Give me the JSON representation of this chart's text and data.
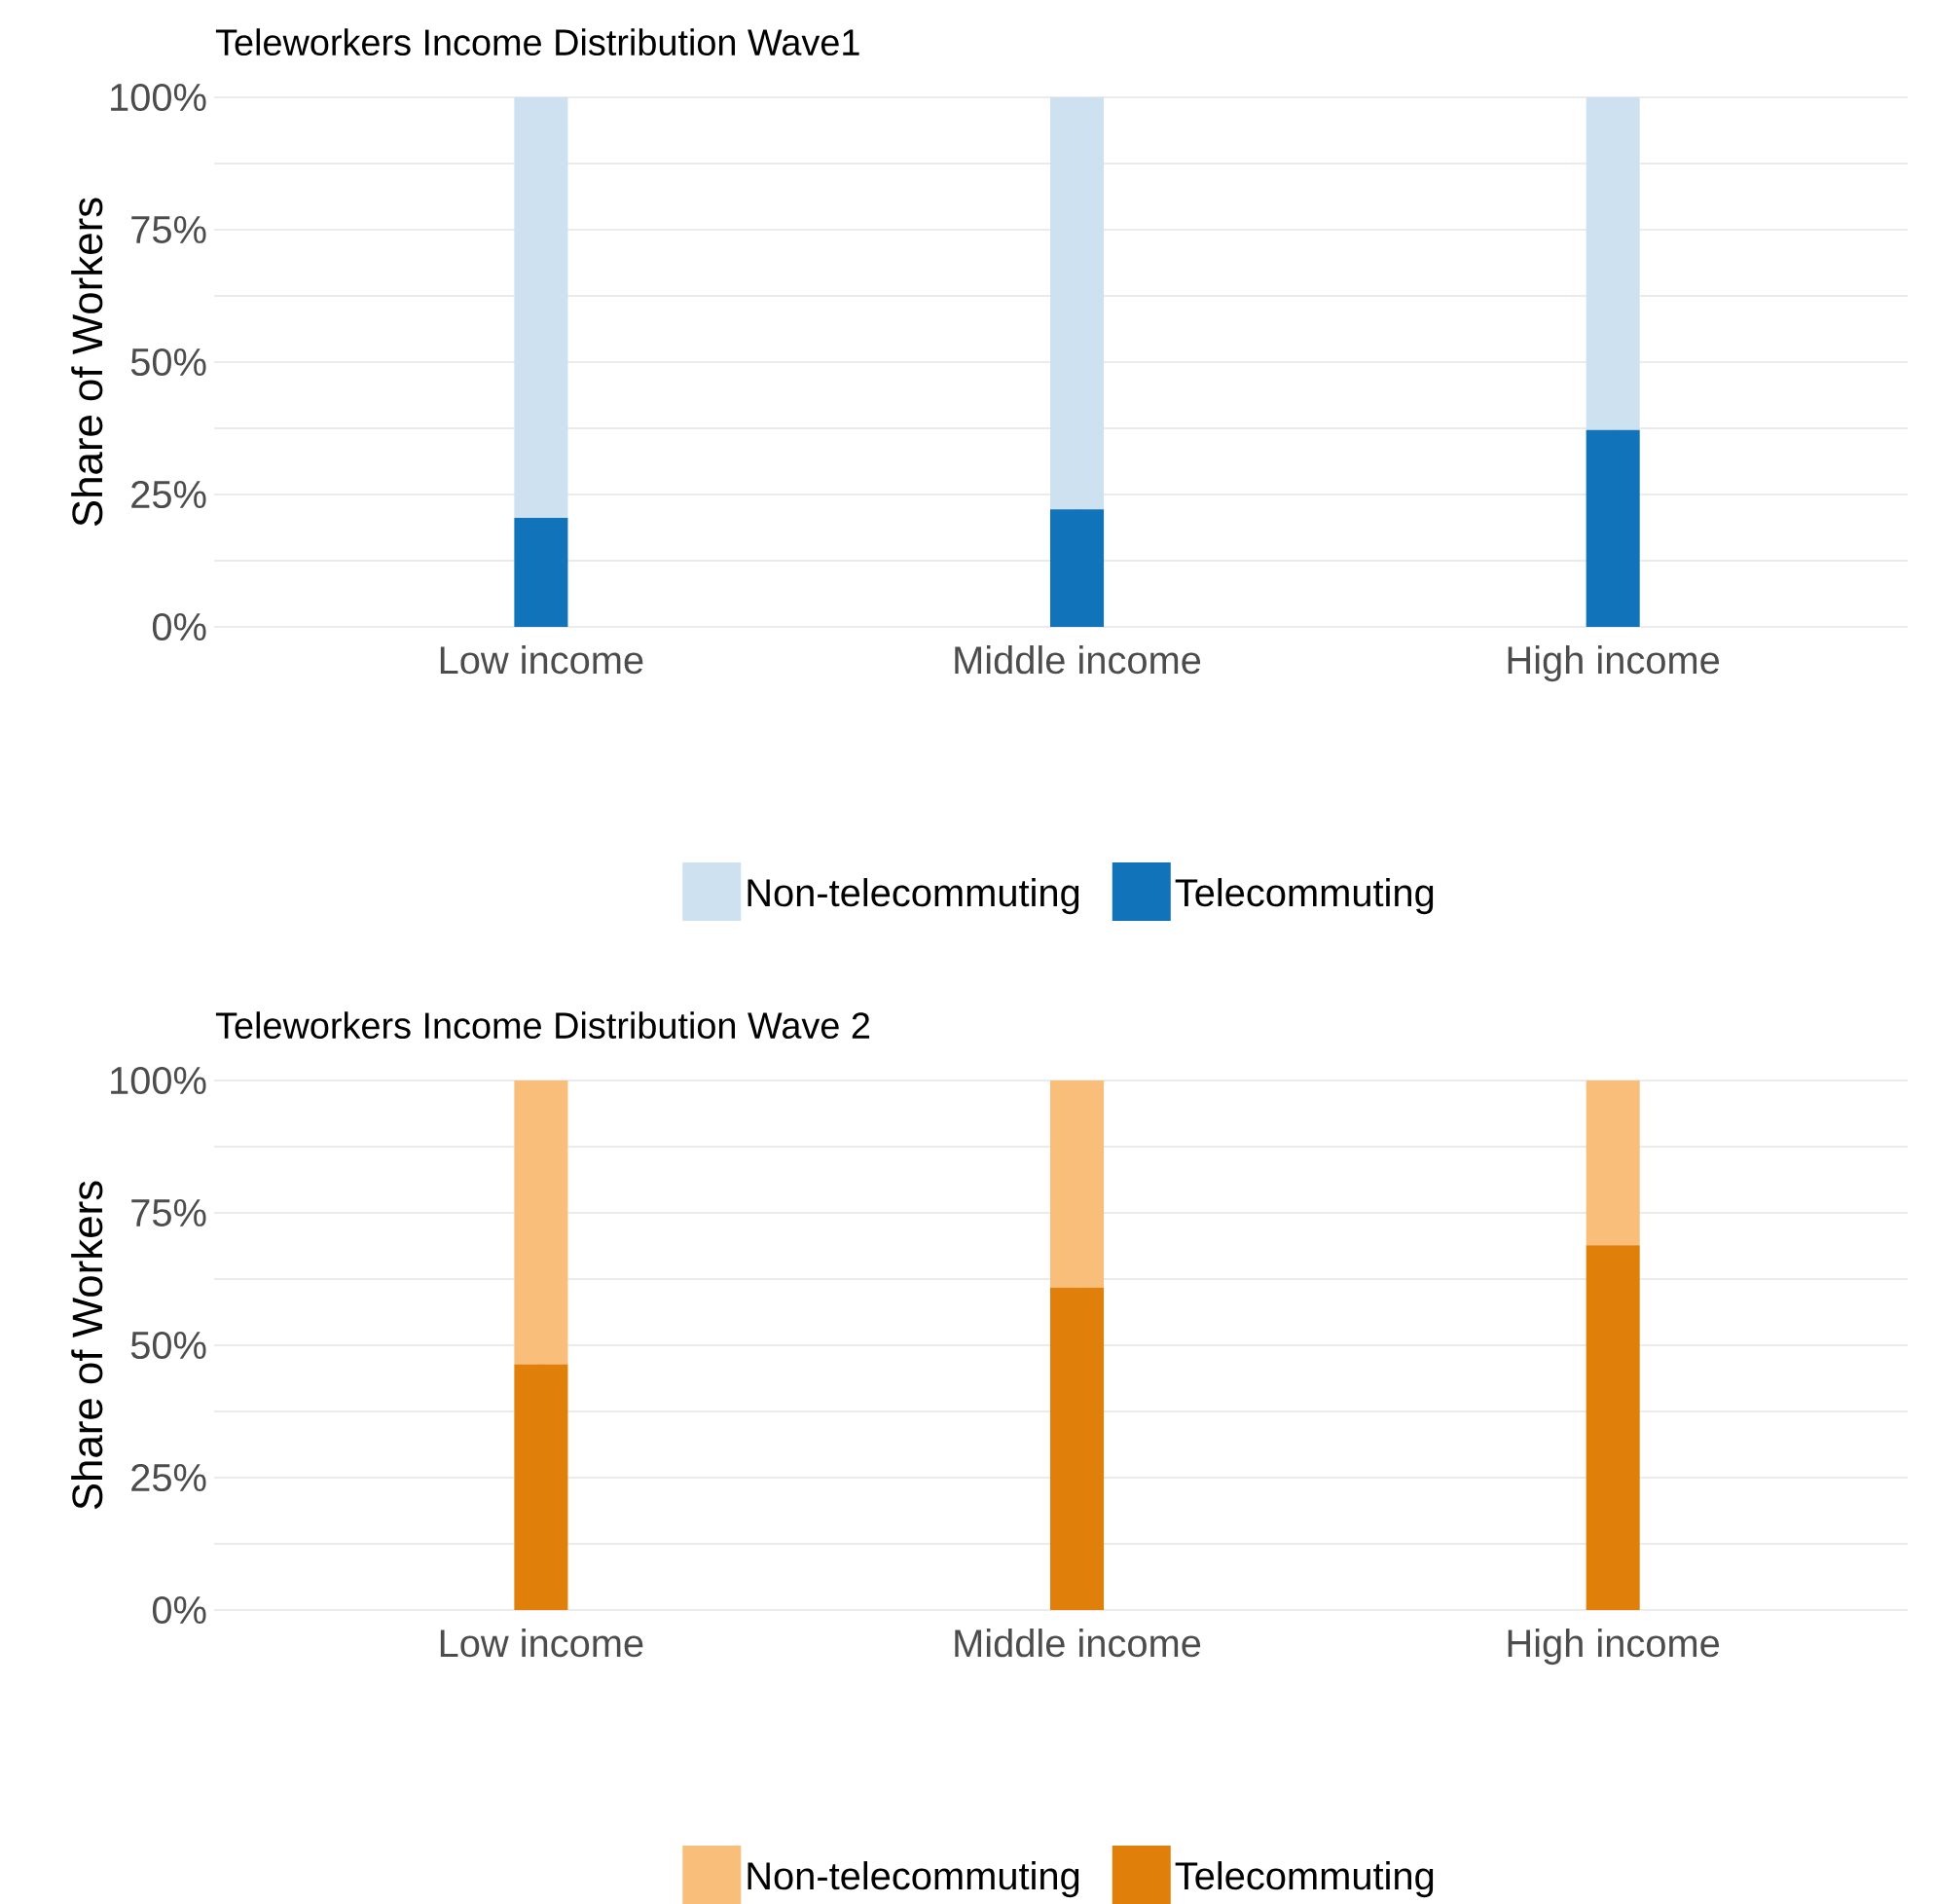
{
  "chart_data": [
    {
      "type": "bar",
      "title": "Teleworkers Income Distribution Wave1",
      "ylabel": "Share of Workers",
      "categories": [
        "Low income",
        "Middle income",
        "High income"
      ],
      "stacked": true,
      "series": [
        {
          "name": "Telecommuting",
          "color": "#1173b9",
          "values": [
            20.6,
            22.2,
            37.2
          ]
        },
        {
          "name": "Non-telecommuting",
          "color": "#cde1f0",
          "values": [
            79.4,
            77.8,
            62.8
          ]
        }
      ],
      "ylim": [
        0,
        100
      ],
      "yticks": [
        {
          "value": 0,
          "label": "0%"
        },
        {
          "value": 25,
          "label": "25%"
        },
        {
          "value": 50,
          "label": "50%"
        },
        {
          "value": 75,
          "label": "75%"
        },
        {
          "value": 100,
          "label": "100%"
        }
      ],
      "grid": true,
      "legend": "bottom"
    },
    {
      "type": "bar",
      "title": "Teleworkers Income Distribution Wave 2",
      "ylabel": "Share of Workers",
      "categories": [
        "Low income",
        "Middle income",
        "High income"
      ],
      "stacked": true,
      "series": [
        {
          "name": "Telecommuting",
          "color": "#e07f0a",
          "values": [
            46.4,
            60.9,
            68.9
          ]
        },
        {
          "name": "Non-telecommuting",
          "color": "#f9be7a",
          "values": [
            53.6,
            39.1,
            31.1
          ]
        }
      ],
      "ylim": [
        0,
        100
      ],
      "yticks": [
        {
          "value": 0,
          "label": "0%"
        },
        {
          "value": 25,
          "label": "25%"
        },
        {
          "value": 50,
          "label": "50%"
        },
        {
          "value": 75,
          "label": "75%"
        },
        {
          "value": 100,
          "label": "100%"
        }
      ],
      "grid": true,
      "legend": "bottom"
    }
  ]
}
